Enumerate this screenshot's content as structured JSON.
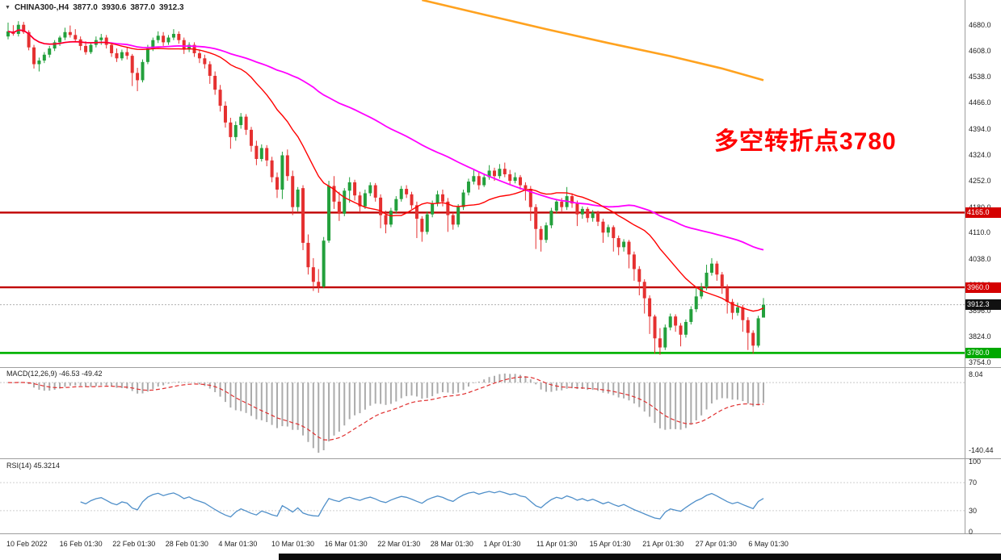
{
  "header": {
    "collapse_icon": "▼",
    "symbol": "CHINA300-,H4",
    "open": "3877.0",
    "high": "3930.6",
    "low": "3877.0",
    "close": "3912.3"
  },
  "annotation": {
    "text": "多空转折点3780",
    "color": "#ff0000"
  },
  "indicators": {
    "macd": {
      "label": "MACD(12,26,9) -46.53 -49.42",
      "fast": 12,
      "slow": 26,
      "signal": 9,
      "value": -46.53,
      "signal_value": -49.42,
      "axis_max_label": "8.04",
      "axis_min_label": "-140.44",
      "hist_color": "#ababab",
      "signal_color": "#e03030"
    },
    "rsi": {
      "label": "RSI(14) 45.3214",
      "period": 14,
      "value": 45.3214,
      "levels": [
        100,
        70,
        30,
        0
      ],
      "level_lines": [
        70,
        30
      ],
      "line_color": "#4f8fc9"
    }
  },
  "chart_data": {
    "type": "candlestick",
    "symbol": "CHINA300",
    "timeframe": "H4",
    "title": "CHINA300-,H4",
    "ylim": [
      3741,
      4748
    ],
    "grid": false,
    "y_tick_labels": [
      "4680.0",
      "4608.0",
      "4538.0",
      "4466.0",
      "4394.0",
      "4324.0",
      "4252.0",
      "4180.0",
      "4110.0",
      "4038.0",
      "3966.0",
      "3896.0",
      "3824.0",
      "3754.0"
    ],
    "x_tick_labels": [
      "10 Feb 2022",
      "16 Feb 01:30",
      "22 Feb 01:30",
      "28 Feb 01:30",
      "4 Mar 01:30",
      "10 Mar 01:30",
      "16 Mar 01:30",
      "22 Mar 01:30",
      "28 Mar 01:30",
      "1 Apr 01:30",
      "11 Apr 01:30",
      "15 Apr 01:30",
      "21 Apr 01:30",
      "27 Apr 01:30",
      "6 May 01:30"
    ],
    "colors": {
      "up": "#23a03c",
      "down": "#e53030"
    },
    "hlines": [
      {
        "price": 4165.0,
        "color": "#c00000",
        "w": 2.4,
        "dash": ""
      },
      {
        "price": 3960.0,
        "color": "#c00000",
        "w": 2.4,
        "dash": ""
      },
      {
        "price": 3780.0,
        "color": "#00b400",
        "w": 2.8,
        "dash": ""
      },
      {
        "price": 3912.3,
        "color": "#b0b0b0",
        "w": 1,
        "dash": "2 2"
      }
    ],
    "price_badges": [
      {
        "label": "4165.0",
        "price": 4165.0,
        "bg": "#d40000",
        "fg": "#ffffff"
      },
      {
        "label": "3960.0",
        "price": 3960.0,
        "bg": "#d40000",
        "fg": "#ffffff"
      },
      {
        "label": "3912.3",
        "price": 3912.3,
        "bg": "#111111",
        "fg": "#ffffff"
      },
      {
        "label": "3780.0",
        "price": 3780.0,
        "bg": "#00a800",
        "fg": "#ffffff"
      }
    ],
    "last_price": 3912.3,
    "overlays": {
      "ma_fast": {
        "type": "sma",
        "period": 20,
        "color": "#ff0000"
      },
      "ma_slow": {
        "type": "sma",
        "period": 60,
        "color": "#ff00ff"
      },
      "trend_line": {
        "color": "#ffa21f",
        "points": [
          [
            80,
            4748
          ],
          [
            92,
            4708
          ],
          [
            104,
            4668
          ],
          [
            116,
            4630
          ],
          [
            128,
            4594
          ],
          [
            138,
            4560
          ],
          [
            146,
            4528
          ]
        ]
      }
    },
    "candles": [
      [
        4648,
        4686,
        4640,
        4662
      ],
      [
        4662,
        4679,
        4650,
        4655
      ],
      [
        4655,
        4690,
        4648,
        4680
      ],
      [
        4680,
        4688,
        4655,
        4660
      ],
      [
        4660,
        4665,
        4610,
        4618
      ],
      [
        4618,
        4625,
        4560,
        4572
      ],
      [
        4572,
        4590,
        4552,
        4582
      ],
      [
        4582,
        4605,
        4575,
        4598
      ],
      [
        4598,
        4622,
        4590,
        4615
      ],
      [
        4615,
        4638,
        4608,
        4632
      ],
      [
        4632,
        4650,
        4622,
        4645
      ],
      [
        4645,
        4672,
        4638,
        4660
      ],
      [
        4660,
        4678,
        4645,
        4652
      ],
      [
        4652,
        4668,
        4632,
        4640
      ],
      [
        4640,
        4648,
        4610,
        4622
      ],
      [
        4622,
        4635,
        4598,
        4605
      ],
      [
        4605,
        4630,
        4600,
        4625
      ],
      [
        4625,
        4648,
        4618,
        4638
      ],
      [
        4638,
        4655,
        4625,
        4645
      ],
      [
        4645,
        4652,
        4615,
        4625
      ],
      [
        4625,
        4632,
        4592,
        4602
      ],
      [
        4602,
        4615,
        4578,
        4588
      ],
      [
        4588,
        4612,
        4582,
        4605
      ],
      [
        4605,
        4618,
        4585,
        4595
      ],
      [
        4595,
        4600,
        4512,
        4548
      ],
      [
        4548,
        4562,
        4498,
        4528
      ],
      [
        4528,
        4585,
        4522,
        4578
      ],
      [
        4578,
        4625,
        4572,
        4615
      ],
      [
        4615,
        4645,
        4608,
        4638
      ],
      [
        4638,
        4662,
        4630,
        4650
      ],
      [
        4650,
        4660,
        4622,
        4632
      ],
      [
        4632,
        4652,
        4625,
        4645
      ],
      [
        4645,
        4668,
        4638,
        4655
      ],
      [
        4655,
        4662,
        4628,
        4638
      ],
      [
        4638,
        4645,
        4600,
        4612
      ],
      [
        4612,
        4632,
        4605,
        4625
      ],
      [
        4625,
        4632,
        4592,
        4602
      ],
      [
        4602,
        4612,
        4575,
        4588
      ],
      [
        4588,
        4598,
        4560,
        4572
      ],
      [
        4572,
        4580,
        4518,
        4540
      ],
      [
        4540,
        4552,
        4488,
        4502
      ],
      [
        4502,
        4515,
        4442,
        4458
      ],
      [
        4458,
        4470,
        4398,
        4412
      ],
      [
        4412,
        4425,
        4340,
        4372
      ],
      [
        4372,
        4415,
        4362,
        4405
      ],
      [
        4405,
        4438,
        4395,
        4428
      ],
      [
        4428,
        4435,
        4378,
        4392
      ],
      [
        4392,
        4400,
        4332,
        4348
      ],
      [
        4348,
        4362,
        4295,
        4312
      ],
      [
        4312,
        4352,
        4305,
        4342
      ],
      [
        4342,
        4350,
        4292,
        4308
      ],
      [
        4308,
        4318,
        4248,
        4262
      ],
      [
        4262,
        4275,
        4205,
        4228
      ],
      [
        4228,
        4332,
        4202,
        4322
      ],
      [
        4322,
        4338,
        4252,
        4265
      ],
      [
        4265,
        4280,
        4158,
        4180
      ],
      [
        4180,
        4235,
        4168,
        4228
      ],
      [
        4232,
        4240,
        4062,
        4082
      ],
      [
        4082,
        4105,
        3995,
        4015
      ],
      [
        4015,
        4040,
        3950,
        3975
      ],
      [
        3975,
        4010,
        3945,
        3962
      ],
      [
        3962,
        4098,
        3958,
        4088
      ],
      [
        4088,
        4252,
        4082,
        4238
      ],
      [
        4238,
        4265,
        4175,
        4195
      ],
      [
        4195,
        4222,
        4142,
        4162
      ],
      [
        4162,
        4232,
        4155,
        4225
      ],
      [
        4225,
        4262,
        4192,
        4248
      ],
      [
        4248,
        4255,
        4198,
        4212
      ],
      [
        4212,
        4222,
        4168,
        4182
      ],
      [
        4182,
        4228,
        4175,
        4218
      ],
      [
        4218,
        4248,
        4210,
        4240
      ],
      [
        4240,
        4246,
        4195,
        4206
      ],
      [
        4206,
        4215,
        4122,
        4158
      ],
      [
        4158,
        4170,
        4108,
        4132
      ],
      [
        4132,
        4178,
        4125,
        4170
      ],
      [
        4170,
        4210,
        4162,
        4202
      ],
      [
        4202,
        4238,
        4195,
        4230
      ],
      [
        4230,
        4240,
        4205,
        4215
      ],
      [
        4215,
        4222,
        4175,
        4185
      ],
      [
        4185,
        4195,
        4095,
        4148
      ],
      [
        4148,
        4155,
        4085,
        4112
      ],
      [
        4112,
        4168,
        4105,
        4160
      ],
      [
        4160,
        4198,
        4152,
        4190
      ],
      [
        4190,
        4225,
        4182,
        4215
      ],
      [
        4215,
        4228,
        4182,
        4195
      ],
      [
        4195,
        4205,
        4112,
        4158
      ],
      [
        4158,
        4165,
        4118,
        4132
      ],
      [
        4132,
        4188,
        4125,
        4180
      ],
      [
        4180,
        4228,
        4172,
        4220
      ],
      [
        4220,
        4258,
        4212,
        4250
      ],
      [
        4250,
        4282,
        4242,
        4265
      ],
      [
        4265,
        4275,
        4228,
        4240
      ],
      [
        4240,
        4272,
        4235,
        4262
      ],
      [
        4262,
        4295,
        4255,
        4280
      ],
      [
        4280,
        4288,
        4252,
        4265
      ],
      [
        4265,
        4298,
        4258,
        4285
      ],
      [
        4285,
        4302,
        4262,
        4270
      ],
      [
        4270,
        4282,
        4242,
        4252
      ],
      [
        4252,
        4275,
        4245,
        4262
      ],
      [
        4262,
        4268,
        4228,
        4240
      ],
      [
        4240,
        4248,
        4198,
        4230
      ],
      [
        4230,
        4238,
        4142,
        4180
      ],
      [
        4180,
        4188,
        4065,
        4120
      ],
      [
        4120,
        4128,
        4058,
        4090
      ],
      [
        4090,
        4138,
        4082,
        4130
      ],
      [
        4130,
        4178,
        4122,
        4170
      ],
      [
        4170,
        4202,
        4162,
        4195
      ],
      [
        4195,
        4205,
        4168,
        4180
      ],
      [
        4180,
        4235,
        4172,
        4210
      ],
      [
        4210,
        4218,
        4178,
        4190
      ],
      [
        4190,
        4198,
        4128,
        4160
      ],
      [
        4160,
        4182,
        4148,
        4175
      ],
      [
        4175,
        4180,
        4138,
        4150
      ],
      [
        4150,
        4172,
        4140,
        4165
      ],
      [
        4165,
        4170,
        4128,
        4140
      ],
      [
        4140,
        4148,
        4082,
        4110
      ],
      [
        4110,
        4132,
        4098,
        4125
      ],
      [
        4125,
        4130,
        4058,
        4095
      ],
      [
        4095,
        4102,
        4048,
        4070
      ],
      [
        4070,
        4092,
        4058,
        4085
      ],
      [
        4085,
        4090,
        4012,
        4050
      ],
      [
        4050,
        4058,
        3978,
        4010
      ],
      [
        4010,
        4018,
        3938,
        3975
      ],
      [
        3975,
        3982,
        3888,
        3930
      ],
      [
        3930,
        3938,
        3832,
        3880
      ],
      [
        3880,
        3885,
        3778,
        3820
      ],
      [
        3820,
        3848,
        3775,
        3795
      ],
      [
        3795,
        3858,
        3788,
        3850
      ],
      [
        3850,
        3888,
        3842,
        3880
      ],
      [
        3880,
        3886,
        3838,
        3855
      ],
      [
        3855,
        3862,
        3798,
        3830
      ],
      [
        3830,
        3872,
        3822,
        3865
      ],
      [
        3865,
        3908,
        3858,
        3900
      ],
      [
        3900,
        3958,
        3892,
        3935
      ],
      [
        3935,
        3972,
        3928,
        3960
      ],
      [
        3960,
        4022,
        3952,
        4000
      ],
      [
        4000,
        4040,
        3992,
        4025
      ],
      [
        4025,
        4032,
        3978,
        3995
      ],
      [
        3995,
        4002,
        3942,
        3960
      ],
      [
        3960,
        3968,
        3888,
        3920
      ],
      [
        3920,
        3928,
        3872,
        3890
      ],
      [
        3890,
        3918,
        3882,
        3905
      ],
      [
        3905,
        3912,
        3838,
        3870
      ],
      [
        3870,
        3878,
        3788,
        3835
      ],
      [
        3835,
        3842,
        3778,
        3800
      ],
      [
        3800,
        3882,
        3795,
        3875
      ],
      [
        3877,
        3930.6,
        3877,
        3912.3
      ]
    ]
  }
}
